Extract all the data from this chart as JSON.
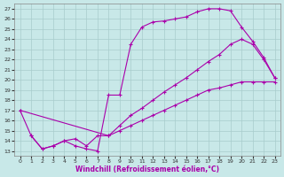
{
  "xlabel": "Windchill (Refroidissement éolien,°C)",
  "xlim": [
    -0.5,
    23.5
  ],
  "ylim": [
    12.5,
    27.5
  ],
  "xticks": [
    0,
    1,
    2,
    3,
    4,
    5,
    6,
    7,
    8,
    9,
    10,
    11,
    12,
    13,
    14,
    15,
    16,
    17,
    18,
    19,
    20,
    21,
    22,
    23
  ],
  "yticks": [
    13,
    14,
    15,
    16,
    17,
    18,
    19,
    20,
    21,
    22,
    23,
    24,
    25,
    26,
    27
  ],
  "bg_color": "#c8e8e8",
  "grid_color": "#a8cccc",
  "line_color": "#aa00aa",
  "line1_x": [
    0,
    1,
    2,
    3,
    4,
    5,
    6,
    7,
    8,
    9,
    10,
    11,
    12,
    13,
    14,
    15,
    16,
    17,
    18,
    19,
    20,
    21,
    22,
    23
  ],
  "line1_y": [
    17.0,
    14.5,
    13.2,
    13.5,
    14.0,
    13.5,
    13.2,
    13.0,
    18.5,
    18.5,
    23.5,
    25.2,
    25.7,
    25.8,
    26.0,
    26.2,
    26.7,
    27.0,
    27.0,
    26.8,
    25.2,
    23.8,
    22.2,
    20.2
  ],
  "line2_x": [
    0,
    8,
    9,
    10,
    11,
    12,
    13,
    14,
    15,
    16,
    17,
    18,
    19,
    20,
    21,
    22,
    23
  ],
  "line2_y": [
    17.0,
    14.5,
    15.5,
    16.5,
    17.2,
    18.0,
    18.8,
    19.5,
    20.2,
    21.0,
    21.8,
    22.5,
    23.5,
    24.0,
    23.5,
    22.0,
    20.2
  ],
  "line3_x": [
    1,
    2,
    3,
    4,
    5,
    6,
    7,
    8,
    9,
    10,
    11,
    12,
    13,
    14,
    15,
    16,
    17,
    18,
    19,
    20,
    21,
    22,
    23
  ],
  "line3_y": [
    14.5,
    13.2,
    13.5,
    14.0,
    14.2,
    13.5,
    14.5,
    14.5,
    15.0,
    15.5,
    16.0,
    16.5,
    17.0,
    17.5,
    18.0,
    18.5,
    19.0,
    19.2,
    19.5,
    19.8,
    19.8,
    19.8,
    19.8
  ]
}
